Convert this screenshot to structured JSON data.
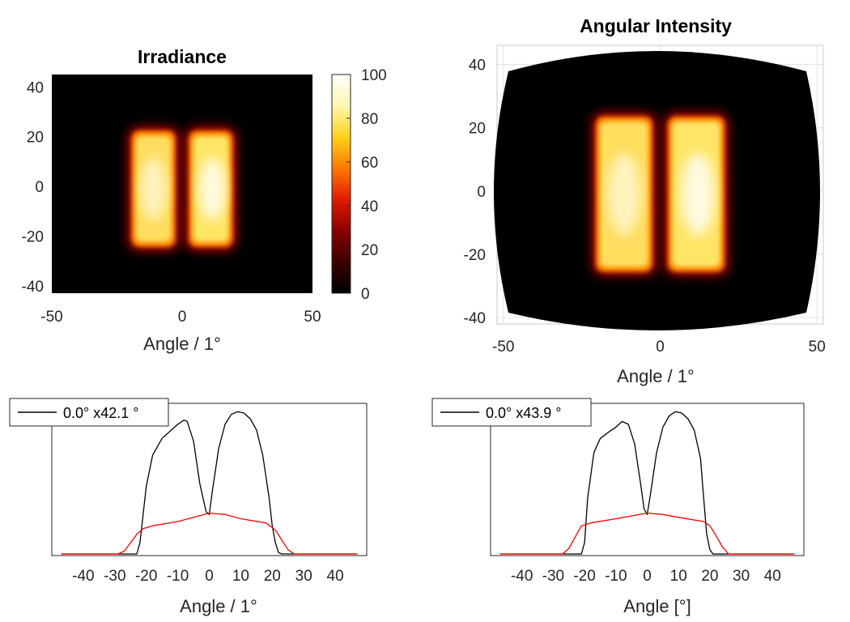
{
  "chart_data": [
    {
      "type": "heatmap",
      "title": "Irradiance",
      "xlabel": "Angle / 1°",
      "ylabel": "",
      "xlim": [
        -50,
        50
      ],
      "ylim": [
        -43,
        45
      ],
      "xticks": [
        "-50",
        "0",
        "50"
      ],
      "yticks": [
        "40",
        "20",
        "0",
        "-20",
        "-40"
      ],
      "colorbar": {
        "range": [
          0,
          100
        ],
        "ticks": [
          "100",
          "80",
          "60",
          "40",
          "20",
          "0"
        ]
      },
      "colormap": [
        "#000000",
        "#3a0000",
        "#8c0000",
        "#e11a00",
        "#ff7a00",
        "#ffd21a",
        "#fff7b0",
        "#ffffff"
      ],
      "bars": [
        {
          "x": [
            -20,
            -2
          ],
          "y": [
            -25,
            23
          ],
          "peak": 90
        },
        {
          "x": [
            2,
            20
          ],
          "y": [
            -25,
            23
          ],
          "peak": 100
        }
      ]
    },
    {
      "type": "heatmap",
      "title": "Angular Intensity",
      "xlabel": "Angle / 1°",
      "ylabel": "",
      "xlim": [
        -52,
        52
      ],
      "ylim": [
        -42,
        46
      ],
      "xticks": [
        "-50",
        "0",
        "50"
      ],
      "yticks": [
        "40",
        "20",
        "0",
        "-20",
        "-40"
      ],
      "bars": [
        {
          "x": [
            -21,
            -2
          ],
          "y": [
            -26,
            24
          ],
          "peak": 90
        },
        {
          "x": [
            2,
            21
          ],
          "y": [
            -26,
            24
          ],
          "peak": 100
        }
      ]
    },
    {
      "type": "line",
      "xlabel": "Angle / 1°",
      "ylabel": "",
      "xlim": [
        -50,
        50
      ],
      "ylim": [
        0,
        100
      ],
      "xticks": [
        "-40",
        "-30",
        "-20",
        "-10",
        "0",
        "10",
        "20",
        "30",
        "40"
      ],
      "legend": {
        "position": "top-left",
        "label": "0.0° x42.1 °"
      },
      "series": [
        {
          "name": "0.0° x42.1 °",
          "color": "#000000",
          "x": [
            -47,
            -23,
            -22,
            -20,
            -18,
            -15,
            -12,
            -10,
            -8,
            -7,
            -5,
            -3,
            -1,
            0,
            1,
            3,
            5,
            7,
            9,
            11,
            13,
            15,
            17,
            19,
            20,
            21,
            22,
            23,
            47
          ],
          "y": [
            0,
            0,
            8,
            48,
            70,
            82,
            88,
            92,
            95,
            94,
            80,
            50,
            30,
            28,
            45,
            75,
            92,
            99,
            101,
            100,
            96,
            88,
            70,
            40,
            20,
            8,
            1,
            0,
            0
          ]
        },
        {
          "color": "#ff0000",
          "x": [
            -47,
            -29,
            -27,
            -25,
            -23,
            -21,
            -18,
            -10,
            -5,
            0,
            5,
            10,
            18,
            21,
            23,
            25,
            27,
            47
          ],
          "y": [
            0,
            0,
            2,
            8,
            14,
            18,
            20,
            23,
            26,
            29,
            28,
            25,
            22,
            17,
            10,
            3,
            0,
            0
          ]
        }
      ]
    },
    {
      "type": "line",
      "xlabel": "Angle [°]",
      "ylabel": "",
      "xlim": [
        -50,
        50
      ],
      "ylim": [
        0,
        100
      ],
      "xticks": [
        "-40",
        "-30",
        "-20",
        "-10",
        "0",
        "10",
        "20",
        "30",
        "40"
      ],
      "legend": {
        "position": "top-left",
        "label": "0.0° x43.9 °"
      },
      "series": [
        {
          "name": "0.0° x43.9 °",
          "color": "#000000",
          "x": [
            -47,
            -21,
            -20,
            -19,
            -17,
            -15,
            -12,
            -10,
            -8,
            -6,
            -4,
            -2,
            -1,
            0,
            1,
            3,
            5,
            7,
            9,
            11,
            13,
            15,
            17,
            18,
            19,
            20,
            21,
            47
          ],
          "y": [
            0,
            0,
            8,
            40,
            72,
            82,
            87,
            90,
            94,
            92,
            78,
            48,
            32,
            28,
            42,
            72,
            90,
            98,
            101,
            100,
            96,
            88,
            68,
            40,
            14,
            3,
            0,
            0
          ]
        },
        {
          "color": "#ff0000",
          "x": [
            -47,
            -27,
            -25,
            -23,
            -21,
            -18,
            -10,
            -5,
            0,
            5,
            10,
            18,
            20,
            22,
            24,
            26,
            47
          ],
          "y": [
            0,
            0,
            4,
            12,
            20,
            22,
            25,
            27,
            29,
            28,
            26,
            23,
            20,
            13,
            5,
            0,
            0
          ]
        }
      ]
    }
  ]
}
